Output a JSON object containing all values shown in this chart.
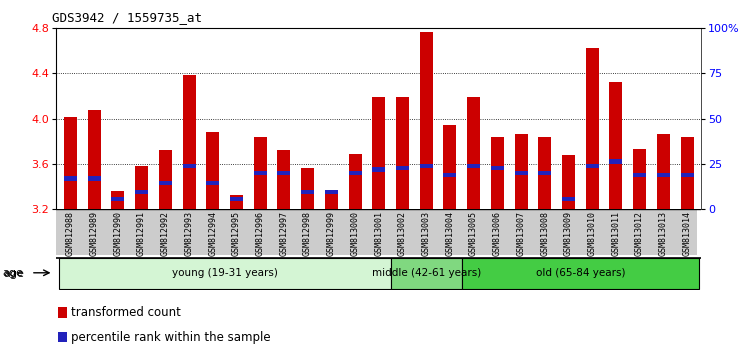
{
  "title": "GDS3942 / 1559735_at",
  "samples": [
    "GSM812988",
    "GSM812989",
    "GSM812990",
    "GSM812991",
    "GSM812992",
    "GSM812993",
    "GSM812994",
    "GSM812995",
    "GSM812996",
    "GSM812997",
    "GSM812998",
    "GSM812999",
    "GSM813000",
    "GSM813001",
    "GSM813002",
    "GSM813003",
    "GSM813004",
    "GSM813005",
    "GSM813006",
    "GSM813007",
    "GSM813008",
    "GSM813009",
    "GSM813010",
    "GSM813011",
    "GSM813012",
    "GSM813013",
    "GSM813014"
  ],
  "red_values": [
    4.01,
    4.08,
    3.36,
    3.58,
    3.72,
    4.39,
    3.88,
    3.32,
    3.84,
    3.72,
    3.56,
    3.35,
    3.69,
    4.19,
    4.19,
    4.77,
    3.94,
    4.19,
    3.84,
    3.86,
    3.84,
    3.68,
    4.63,
    4.32,
    3.73,
    3.86,
    3.84
  ],
  "blue_values": [
    3.47,
    3.47,
    3.29,
    3.35,
    3.43,
    3.58,
    3.43,
    3.29,
    3.52,
    3.52,
    3.35,
    3.35,
    3.52,
    3.55,
    3.56,
    3.58,
    3.5,
    3.58,
    3.56,
    3.52,
    3.52,
    3.29,
    3.58,
    3.62,
    3.5,
    3.5,
    3.5
  ],
  "groups": [
    {
      "label": "young (19-31 years)",
      "start": 0,
      "end": 14,
      "color": "#d4f5d4"
    },
    {
      "label": "middle (42-61 years)",
      "start": 14,
      "end": 17,
      "color": "#80d880"
    },
    {
      "label": "old (65-84 years)",
      "start": 17,
      "end": 27,
      "color": "#44cc44"
    }
  ],
  "ylim_left": [
    3.2,
    4.8
  ],
  "ylim_right": [
    0,
    100
  ],
  "yticks_left": [
    3.2,
    3.6,
    4.0,
    4.4,
    4.8
  ],
  "yticks_right_vals": [
    0,
    25,
    50,
    75,
    100
  ],
  "yticks_right_labels": [
    "0",
    "25",
    "50",
    "75",
    "100%"
  ],
  "bar_color": "#cc0000",
  "blue_color": "#2222bb",
  "bar_width": 0.55,
  "plot_bg_color": "#ffffff",
  "xtick_bg_color": "#cccccc",
  "legend_red": "transformed count",
  "legend_blue": "percentile rank within the sample",
  "age_label": "age"
}
